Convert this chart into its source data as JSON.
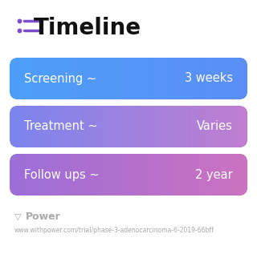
{
  "title": "Timeline",
  "title_fontsize": 20,
  "title_color": "#111111",
  "icon_color": "#7c4dcc",
  "background_color": "#ffffff",
  "rows": [
    {
      "label": "Screening ~",
      "value": "3 weeks",
      "color_left": "#4d9ef8",
      "color_right": "#5b8ef6"
    },
    {
      "label": "Treatment ~",
      "value": "Varies",
      "color_left": "#7b84ee",
      "color_right": "#c07ed0"
    },
    {
      "label": "Follow ups ~",
      "value": "2 year",
      "color_left": "#9b6ed8",
      "color_right": "#cc72c0"
    }
  ],
  "row_text_color": "#ffffff",
  "row_label_fontsize": 10.5,
  "row_value_fontsize": 10.5,
  "footer_text": "Power",
  "footer_url": "www.withpower.com/trial/phase-3-adenocarcinoma-6-2019-66bff",
  "footer_color": "#aaaaaa",
  "footer_fontsize": 5.5,
  "fig_width": 3.2,
  "fig_height": 3.27,
  "dpi": 100
}
